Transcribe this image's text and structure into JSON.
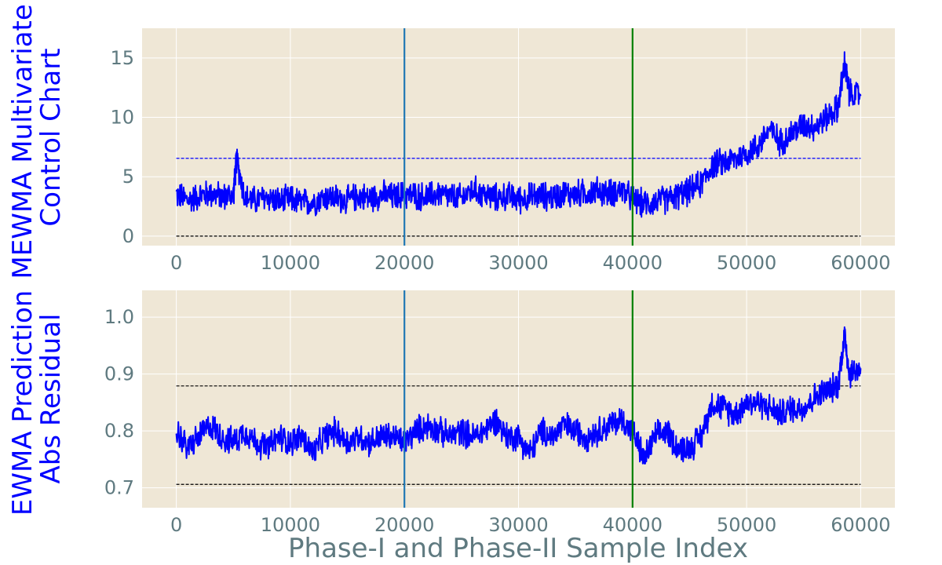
{
  "chart_data": [
    {
      "type": "line",
      "title": "",
      "xlabel": "",
      "ylabel_lines": [
        "MEWMA Multivariate",
        "Control Chart"
      ],
      "xlim": [
        -3000,
        63000
      ],
      "ylim": [
        -0.8,
        17.5
      ],
      "xticks": [
        0,
        10000,
        20000,
        30000,
        40000,
        50000,
        60000
      ],
      "xtick_labels": [
        "0",
        "10000",
        "20000",
        "30000",
        "40000",
        "50000",
        "60000"
      ],
      "yticks": [
        0,
        5,
        10,
        15
      ],
      "ytick_labels": [
        "0",
        "5",
        "10",
        "15"
      ],
      "grid": true,
      "vlines": [
        {
          "x": 20000,
          "color": "#1f77b4"
        },
        {
          "x": 40000,
          "color": "#008000"
        }
      ],
      "hlines": [
        {
          "y": 6.55,
          "color": "#0000ff",
          "style": "dashed"
        },
        {
          "y": 0.0,
          "color": "#000000",
          "style": "dashed"
        }
      ],
      "series": [
        {
          "color": "#0000ff",
          "x": [
            0,
            1000,
            2000,
            3000,
            4000,
            5000,
            5300,
            6000,
            7000,
            8000,
            9000,
            10000,
            11000,
            12000,
            13000,
            14000,
            15000,
            16000,
            17000,
            18000,
            19000,
            20000,
            21000,
            22000,
            23000,
            24000,
            25000,
            26000,
            27000,
            28000,
            29000,
            30000,
            31000,
            32000,
            33000,
            34000,
            35000,
            36000,
            37000,
            38000,
            39000,
            40000,
            41000,
            42000,
            43000,
            44000,
            45000,
            46000,
            47000,
            48000,
            49000,
            50000,
            51000,
            52000,
            53000,
            54000,
            55000,
            56000,
            57000,
            58000,
            58600,
            59000,
            60000
          ],
          "y": [
            3.5,
            3.0,
            3.4,
            3.6,
            3.3,
            3.5,
            6.5,
            3.2,
            3.0,
            3.3,
            2.9,
            3.1,
            2.8,
            2.9,
            3.3,
            3.2,
            3.0,
            3.4,
            3.2,
            3.5,
            3.3,
            3.5,
            3.4,
            3.3,
            3.6,
            3.3,
            3.2,
            3.9,
            3.5,
            3.2,
            3.4,
            3.1,
            3.3,
            3.4,
            3.3,
            3.6,
            3.5,
            3.7,
            3.8,
            3.6,
            3.9,
            3.1,
            2.7,
            2.9,
            3.1,
            3.4,
            3.8,
            4.4,
            6.0,
            6.2,
            6.5,
            7.0,
            7.6,
            9.0,
            7.9,
            8.7,
            9.4,
            9.2,
            10.0,
            10.8,
            14.5,
            12.0,
            11.8
          ]
        }
      ]
    },
    {
      "type": "line",
      "title": "",
      "xlabel": "Phase-I and Phase-II Sample Index",
      "ylabel_lines": [
        "EWMA Prediction",
        "Abs Residual"
      ],
      "xlim": [
        -3000,
        63000
      ],
      "ylim": [
        0.665,
        1.047
      ],
      "xticks": [
        0,
        10000,
        20000,
        30000,
        40000,
        50000,
        60000
      ],
      "xtick_labels": [
        "0",
        "10000",
        "20000",
        "30000",
        "40000",
        "50000",
        "60000"
      ],
      "yticks": [
        0.7,
        0.8,
        0.9,
        1.0
      ],
      "ytick_labels": [
        "0.7",
        "0.8",
        "0.9",
        "1.0"
      ],
      "grid": true,
      "vlines": [
        {
          "x": 20000,
          "color": "#1f77b4"
        },
        {
          "x": 40000,
          "color": "#008000"
        }
      ],
      "hlines": [
        {
          "y": 0.879,
          "color": "#000000",
          "style": "dashed"
        },
        {
          "y": 0.706,
          "color": "#000000",
          "style": "dashed"
        }
      ],
      "series": [
        {
          "color": "#0000ff",
          "x": [
            0,
            1000,
            2000,
            3000,
            4000,
            5000,
            6000,
            7000,
            8000,
            9000,
            10000,
            11000,
            12000,
            13000,
            14000,
            15000,
            16000,
            17000,
            18000,
            19000,
            20000,
            21000,
            22000,
            23000,
            24000,
            25000,
            26000,
            27000,
            28000,
            29000,
            30000,
            31000,
            32000,
            33000,
            34000,
            35000,
            36000,
            37000,
            38000,
            39000,
            40000,
            41000,
            42000,
            43000,
            44000,
            45000,
            46000,
            47000,
            48000,
            49000,
            50000,
            51000,
            52000,
            53000,
            54000,
            55000,
            56000,
            57000,
            58000,
            58600,
            59000,
            60000
          ],
          "y": [
            0.8,
            0.77,
            0.79,
            0.81,
            0.79,
            0.78,
            0.8,
            0.78,
            0.77,
            0.79,
            0.78,
            0.79,
            0.76,
            0.79,
            0.8,
            0.78,
            0.79,
            0.78,
            0.79,
            0.79,
            0.78,
            0.8,
            0.81,
            0.8,
            0.79,
            0.8,
            0.79,
            0.8,
            0.82,
            0.79,
            0.79,
            0.76,
            0.8,
            0.79,
            0.81,
            0.8,
            0.79,
            0.8,
            0.81,
            0.82,
            0.8,
            0.75,
            0.79,
            0.8,
            0.77,
            0.77,
            0.79,
            0.85,
            0.84,
            0.83,
            0.85,
            0.85,
            0.84,
            0.83,
            0.84,
            0.84,
            0.86,
            0.87,
            0.88,
            0.97,
            0.9,
            0.91
          ]
        }
      ]
    }
  ]
}
